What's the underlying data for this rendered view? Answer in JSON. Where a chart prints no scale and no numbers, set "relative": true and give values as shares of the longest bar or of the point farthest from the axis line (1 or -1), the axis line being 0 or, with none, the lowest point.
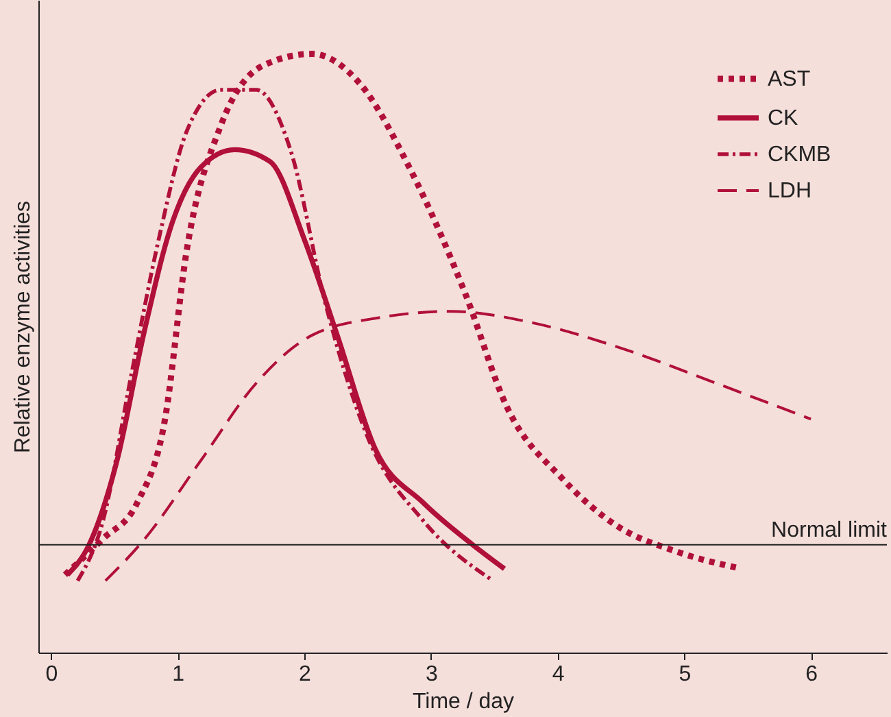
{
  "chart_data": {
    "type": "line",
    "xlabel": "Time / day",
    "ylabel": "Relative enzyme activities",
    "relative": true,
    "xlim": [
      -0.1,
      6.6
    ],
    "xticks": [
      0,
      1,
      2,
      3,
      4,
      5,
      6
    ],
    "legend": "top right",
    "grid": false,
    "series": [
      {
        "name": "AST",
        "color": "#b0103a",
        "line_style": "dotted",
        "x": [
          0.11,
          0.41,
          0.68,
          0.9,
          1.07,
          1.34,
          1.67,
          2.06,
          2.44,
          2.83,
          3.27,
          3.6,
          4.04,
          4.48,
          4.92,
          5.45
        ],
        "values": [
          0.13,
          0.19,
          0.25,
          0.39,
          0.67,
          0.88,
          0.98,
          1.0,
          0.95,
          0.81,
          0.6,
          0.41,
          0.29,
          0.21,
          0.17,
          0.14
        ]
      },
      {
        "name": "CK",
        "color": "#b0103a",
        "line_style": "solid",
        "x": [
          0.13,
          0.3,
          0.52,
          0.74,
          0.96,
          1.18,
          1.45,
          1.73,
          2.0,
          2.26,
          2.56,
          2.94,
          3.33,
          3.58
        ],
        "values": [
          0.13,
          0.18,
          0.32,
          0.54,
          0.72,
          0.81,
          0.84,
          0.82,
          0.69,
          0.53,
          0.34,
          0.25,
          0.18,
          0.14
        ]
      },
      {
        "name": "CKMB",
        "color": "#b0103a",
        "line_style": "dashdot",
        "x": [
          0.21,
          0.41,
          0.63,
          0.85,
          1.07,
          1.34,
          1.62,
          1.89,
          2.17,
          2.5,
          2.94,
          3.49
        ],
        "values": [
          0.12,
          0.22,
          0.46,
          0.69,
          0.87,
          0.94,
          0.94,
          0.84,
          0.58,
          0.36,
          0.22,
          0.12
        ]
      },
      {
        "name": "LDH",
        "color": "#b0103a",
        "line_style": "dashed",
        "x": [
          0.43,
          0.74,
          1.18,
          1.62,
          2.06,
          2.61,
          3.16,
          3.82,
          4.48,
          5.25,
          6.0
        ],
        "values": [
          0.12,
          0.19,
          0.32,
          0.45,
          0.53,
          0.56,
          0.57,
          0.55,
          0.51,
          0.45,
          0.39
        ]
      }
    ],
    "ref_lines": [
      {
        "axis": "y",
        "value": 0.18,
        "label": "Normal limit",
        "color": "#222222"
      }
    ]
  }
}
